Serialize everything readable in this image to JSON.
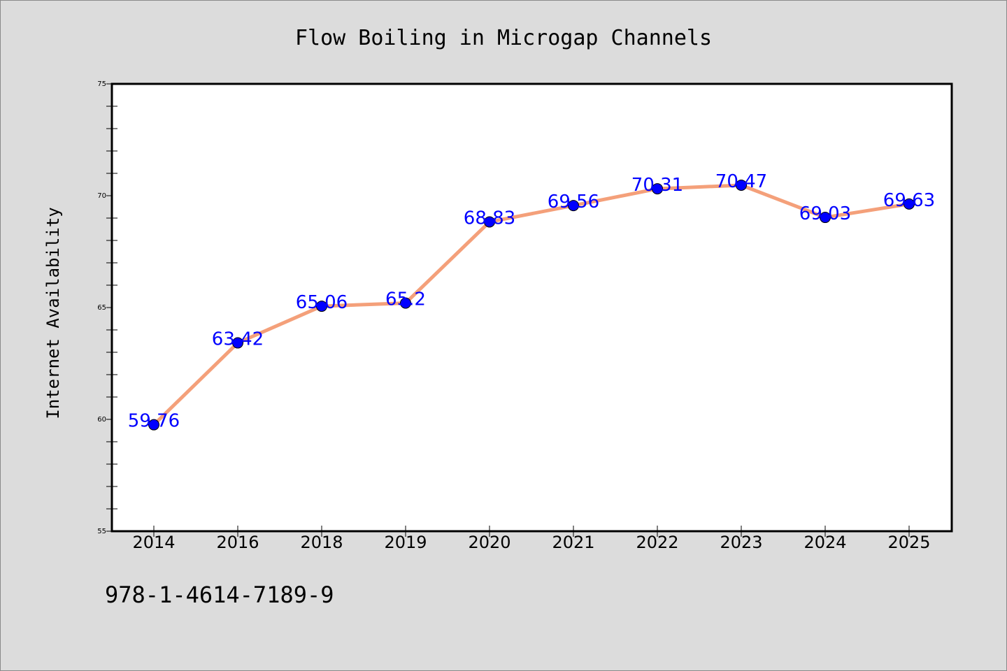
{
  "chart_data": {
    "type": "line",
    "title": "Flow Boiling in Microgap Channels",
    "ylabel": "Internet Availability",
    "xlabel": "",
    "categories": [
      "2014",
      "2016",
      "2018",
      "2019",
      "2020",
      "2021",
      "2022",
      "2023",
      "2024",
      "2025"
    ],
    "values": [
      59.76,
      63.42,
      65.06,
      65.2,
      68.83,
      69.56,
      70.31,
      70.47,
      69.03,
      69.63
    ],
    "data_labels": [
      "59.76",
      "63.42",
      "65.06",
      "65.2",
      "68.83",
      "69.56",
      "70.31",
      "70.47",
      "69.03",
      "69.63"
    ],
    "ylim": [
      55,
      75
    ],
    "yticks": [
      55,
      60,
      65,
      70,
      75
    ],
    "grid": false,
    "colors": {
      "line": "#f4a07a",
      "marker": "#0000ff",
      "label": "#0000ff",
      "background": "#dcdcdc",
      "plot_background": "#ffffff"
    }
  },
  "footer": {
    "identifier": "978-1-4614-7189-9"
  }
}
